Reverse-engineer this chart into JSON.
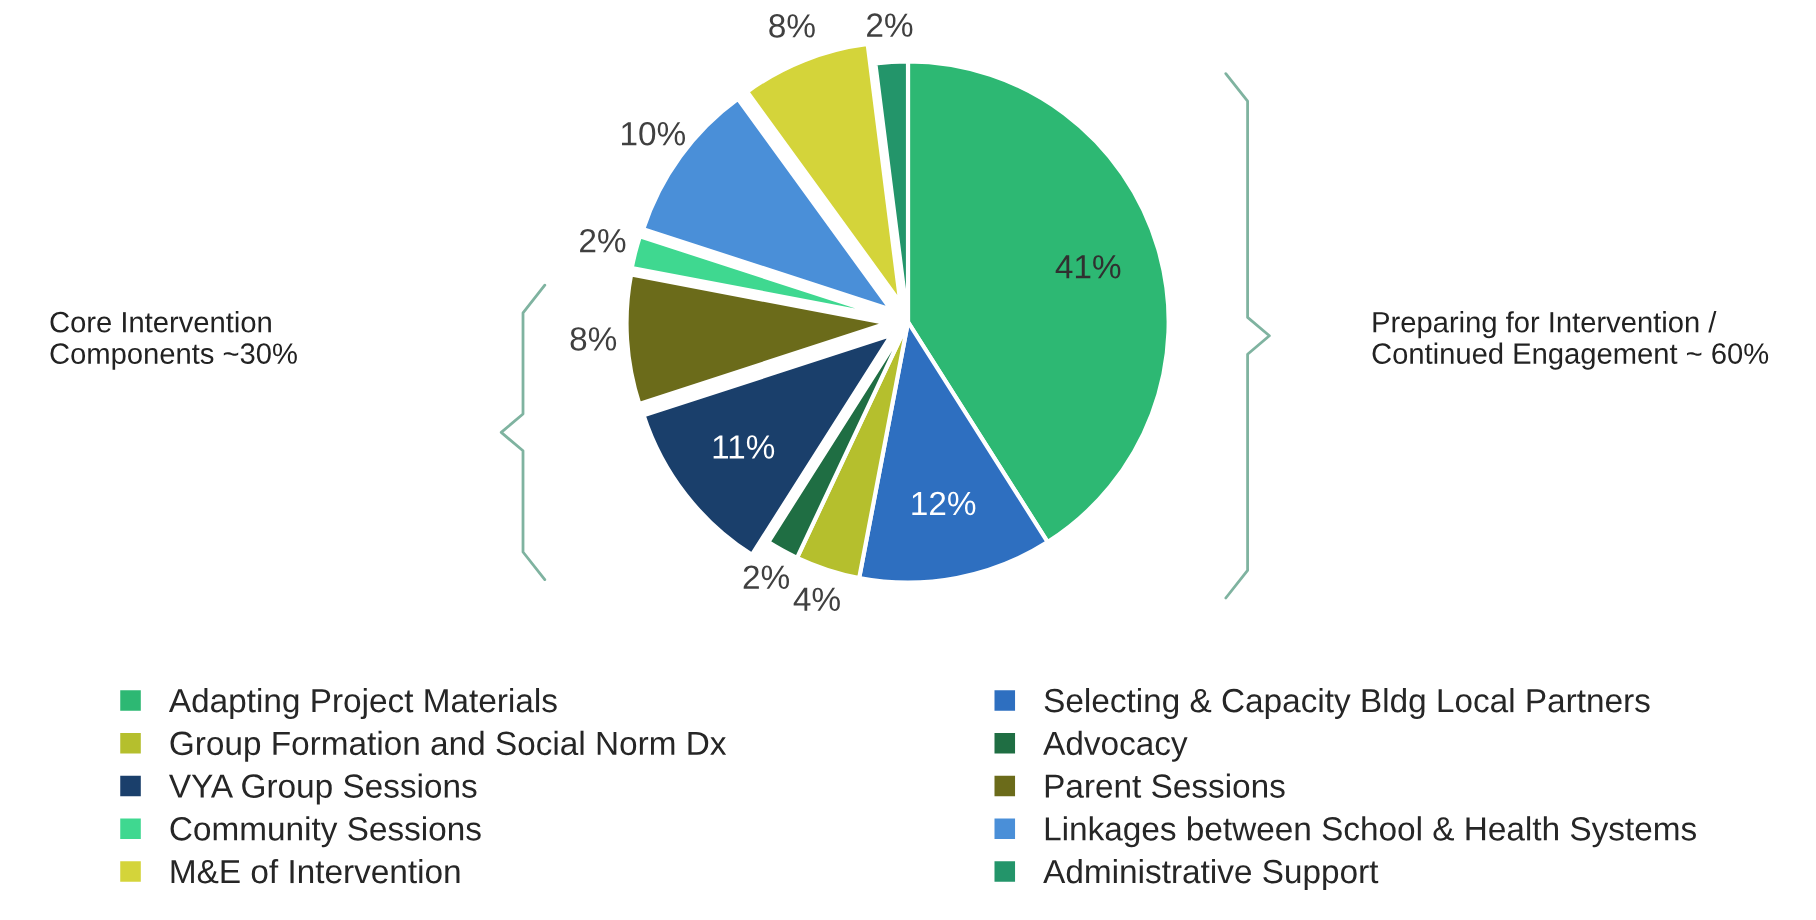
{
  "chart_data": {
    "type": "pie",
    "categories": [
      "Adapting Project Materials",
      "Selecting & Capacity Bldg Local Partners",
      "Group Formation and Social Norm Dx",
      "Advocacy",
      "VYA Group Sessions",
      "Parent Sessions",
      "Community Sessions",
      "Linkages between School & Health Systems",
      "M&E of Intervention",
      "Administrative Support"
    ],
    "values": [
      41,
      12,
      4,
      2,
      11,
      8,
      2,
      10,
      8,
      2
    ],
    "value_labels": [
      "41%",
      "12%",
      "4%",
      "2%",
      "11%",
      "8%",
      "2%",
      "10%",
      "8%",
      "2%"
    ],
    "colors": [
      "#2db873",
      "#2e6fc0",
      "#b5bf2d",
      "#1f6e43",
      "#1a3f6b",
      "#6b6b1a",
      "#3fd890",
      "#4a8fd8",
      "#d4d43a",
      "#23956a"
    ],
    "annotations": [
      "Core Intervention\nComponents ~30%",
      "Preparing for Intervention /\nContinued Engagement ~ 60%"
    ],
    "legend": "bottom"
  }
}
